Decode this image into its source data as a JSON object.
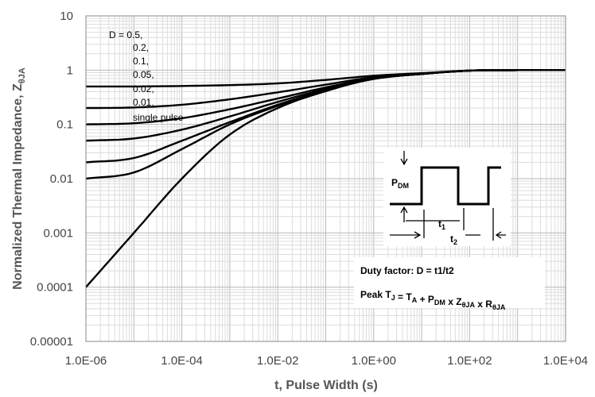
{
  "chart_data": {
    "type": "line",
    "title": "",
    "xlabel": "t, Pulse Width (s)",
    "ylabel": {
      "main": "Normalized Thermal Impedance, Z",
      "subscript": "θJA"
    },
    "xscale": "log",
    "yscale": "log",
    "xlim": [
      1e-06,
      10000.0
    ],
    "ylim": [
      1e-05,
      10
    ],
    "x_tick_labels": [
      "1.0E-06",
      "1.0E-04",
      "1.0E-02",
      "1.0E+00",
      "1.0E+02",
      "1.0E+04"
    ],
    "y_tick_labels": [
      "0.00001",
      "0.0001",
      "0.001",
      "0.01",
      "0.1",
      "1",
      "10"
    ],
    "grid": true,
    "legend": {
      "placement": "top-left",
      "entries": [
        "D = 0.5,",
        "0.2,",
        "0.1,",
        "0.05,",
        "0.02,",
        "0.01,",
        "single pulse"
      ]
    },
    "series": [
      {
        "name": "0.5",
        "x": [
          1e-06,
          1e-05,
          0.0001,
          0.001,
          0.01,
          0.1,
          1,
          10,
          100,
          1000,
          10000
        ],
        "y": [
          0.5,
          0.5,
          0.51,
          0.53,
          0.57,
          0.66,
          0.79,
          0.88,
          0.98,
          1.0,
          1.0
        ]
      },
      {
        "name": "0.2",
        "x": [
          1e-06,
          1e-05,
          0.0001,
          0.001,
          0.01,
          0.1,
          1,
          10,
          100,
          1000,
          10000
        ],
        "y": [
          0.2,
          0.205,
          0.23,
          0.29,
          0.39,
          0.54,
          0.74,
          0.86,
          0.98,
          1.0,
          1.0
        ]
      },
      {
        "name": "0.1",
        "x": [
          1e-06,
          1e-05,
          0.0001,
          0.001,
          0.01,
          0.1,
          1,
          10,
          100,
          1000,
          10000
        ],
        "y": [
          0.1,
          0.105,
          0.13,
          0.19,
          0.3,
          0.48,
          0.71,
          0.85,
          0.98,
          1.0,
          1.0
        ]
      },
      {
        "name": "0.05",
        "x": [
          1e-06,
          1e-05,
          0.0001,
          0.001,
          0.01,
          0.1,
          1,
          10,
          100,
          1000,
          10000
        ],
        "y": [
          0.05,
          0.055,
          0.08,
          0.14,
          0.26,
          0.45,
          0.7,
          0.85,
          0.98,
          1.0,
          1.0
        ]
      },
      {
        "name": "0.02",
        "x": [
          1e-06,
          1e-05,
          0.0001,
          0.001,
          0.01,
          0.1,
          1,
          10,
          100,
          1000,
          10000
        ],
        "y": [
          0.02,
          0.024,
          0.05,
          0.11,
          0.23,
          0.43,
          0.69,
          0.85,
          0.98,
          1.0,
          1.0
        ]
      },
      {
        "name": "0.01",
        "x": [
          1e-06,
          1e-05,
          0.0001,
          0.001,
          0.01,
          0.1,
          1,
          10,
          100,
          1000,
          10000
        ],
        "y": [
          0.01,
          0.013,
          0.035,
          0.1,
          0.22,
          0.42,
          0.69,
          0.85,
          0.98,
          1.0,
          1.0
        ]
      },
      {
        "name": "single pulse",
        "x": [
          1e-06,
          1e-05,
          0.0001,
          0.001,
          0.01,
          0.1,
          1,
          10,
          100,
          1000,
          10000
        ],
        "y": [
          0.0001,
          0.001,
          0.01,
          0.065,
          0.2,
          0.41,
          0.69,
          0.85,
          0.98,
          1.0,
          1.0
        ]
      }
    ],
    "series_color": "#000000"
  },
  "inset": {
    "pdm_label": "P",
    "pdm_sub": "DM",
    "t1_label": "t",
    "t1_sub": "1",
    "t2_label": "t",
    "t2_sub": "2",
    "duty_text": "Duty factor: D = t1/t2",
    "peak_parts": [
      {
        "t": "Peak T",
        "s": "J"
      },
      {
        "t": " = T",
        "s": "A"
      },
      {
        "t": " + P",
        "s": "DM"
      },
      {
        "t": " x Z",
        "s": "θJA"
      },
      {
        "t": " x R",
        "s": "θJA"
      }
    ]
  }
}
